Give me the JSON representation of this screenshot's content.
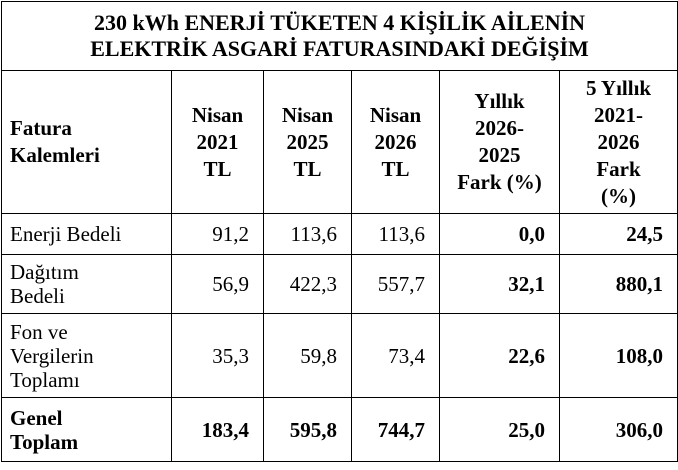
{
  "table": {
    "title": [
      "230 kWh ENERJİ TÜKETEN 4 KİŞİLİK AİLENİN",
      "ELEKTRİK ASGARİ FATURASINDAKİ DEĞİŞİM"
    ],
    "header": [
      [
        "Fatura",
        "Kalemleri"
      ],
      [
        "Nisan",
        "2021",
        "TL"
      ],
      [
        "Nisan",
        "2025",
        "TL"
      ],
      [
        "Nisan",
        "2026",
        "TL"
      ],
      [
        "Yıllık",
        "2026-",
        "2025",
        "Fark (%)"
      ],
      [
        "5 Yıllık",
        "2021-",
        "2026",
        "Fark",
        "(%)"
      ]
    ],
    "rows": [
      {
        "label": [
          "Enerji Bedeli"
        ],
        "cells": [
          "91,2",
          "113,6",
          "113,6",
          "0,0",
          "24,5"
        ]
      },
      {
        "label": [
          "Dağıtım",
          "Bedeli"
        ],
        "cells": [
          "56,9",
          "422,3",
          "557,7",
          "32,1",
          "880,1"
        ]
      },
      {
        "label": [
          "Fon ve",
          "Vergilerin",
          "Toplamı"
        ],
        "cells": [
          "35,3",
          "59,8",
          "73,4",
          "22,6",
          "108,0"
        ]
      },
      {
        "label": [
          "Genel",
          "Toplam"
        ],
        "cells": [
          "183,4",
          "595,8",
          "744,7",
          "25,0",
          "306,0"
        ]
      }
    ]
  }
}
